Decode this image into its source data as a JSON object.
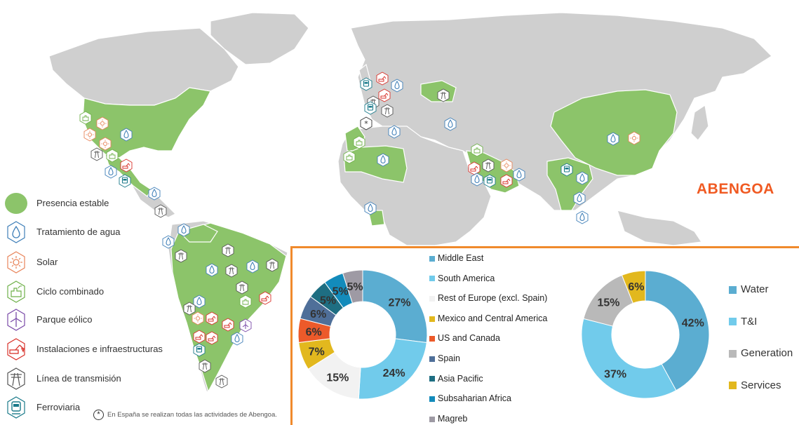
{
  "brand": "ABENGOA",
  "legend": [
    {
      "label": "Presencia estable",
      "icon": "presence-blob-icon",
      "color": "#8cc46a"
    },
    {
      "label": "Tratamiento de agua",
      "icon": "water-drop-icon",
      "color": "#3f7fb8"
    },
    {
      "label": "Solar",
      "icon": "sun-icon",
      "color": "#e8845a"
    },
    {
      "label": "Ciclo combinado",
      "icon": "combined-cycle-icon",
      "color": "#6fb04a"
    },
    {
      "label": "Parque eólico",
      "icon": "wind-turbine-icon",
      "color": "#7a4aa8"
    },
    {
      "label": "Instalaciones e infraestructuras",
      "icon": "excavator-icon",
      "color": "#d9322b"
    },
    {
      "label": "Línea de transmisión",
      "icon": "transmission-tower-icon",
      "color": "#555555"
    },
    {
      "label": "Ferroviaria",
      "icon": "train-icon",
      "color": "#1a7a8a"
    }
  ],
  "footnote": "En España se realizan todas las actividades de Abengoa.",
  "chart_data": [
    {
      "type": "pie",
      "subtype": "donut",
      "categories": [
        "Middle East",
        "South America",
        "Rest of Europe (excl. Spain)",
        "Mexico and Central America",
        "US and Canada",
        "Spain",
        "Asia Pacific",
        "Subsaharian Africa",
        "Magreb"
      ],
      "values": [
        27,
        24,
        15,
        7,
        6,
        6,
        5,
        5,
        5
      ],
      "labels": [
        "27%",
        "24%",
        "15%",
        "7%",
        "6%",
        "6%",
        "5%",
        "5%",
        "5%"
      ],
      "colors": [
        "#5badd1",
        "#71cbeb",
        "#f2f2f2",
        "#e2b81e",
        "#ec5a2a",
        "#4f6f99",
        "#1e6e82",
        "#138bbb",
        "#9e9aa4"
      ],
      "legend_position": "right"
    },
    {
      "type": "pie",
      "subtype": "donut",
      "categories": [
        "Water",
        "T&I",
        "Generation",
        "Services"
      ],
      "values": [
        42,
        37,
        15,
        6
      ],
      "labels": [
        "42%",
        "37%",
        "15%",
        "6%"
      ],
      "colors": [
        "#5badd1",
        "#71cbeb",
        "#b9b9b9",
        "#e2b81e"
      ],
      "legend_position": "right"
    }
  ]
}
